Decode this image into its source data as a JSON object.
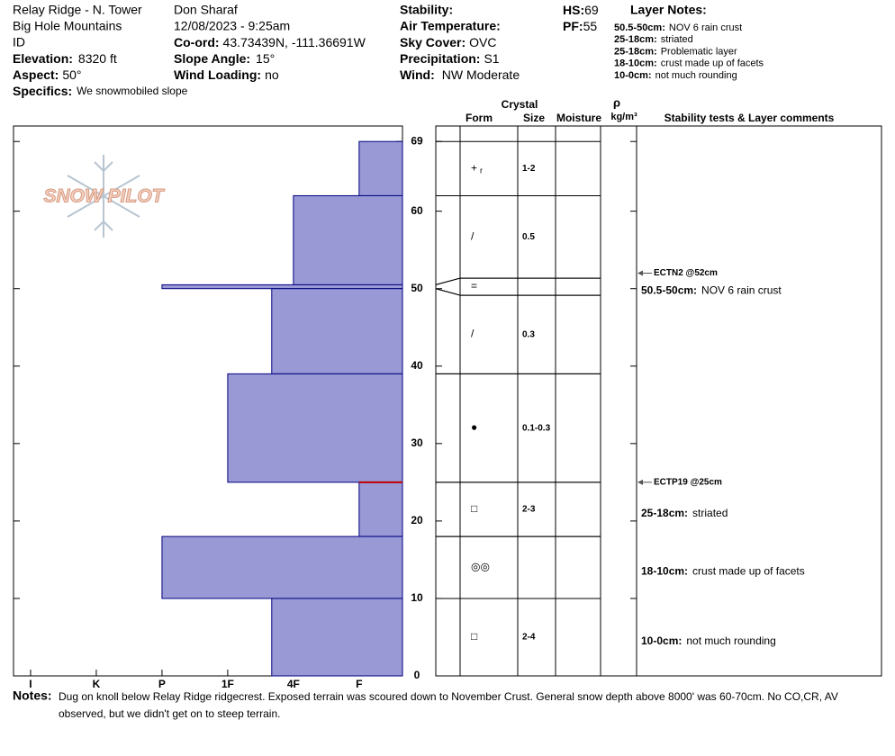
{
  "header": {
    "location": "Relay Ridge - N. Tower",
    "range": "Big Hole Mountains",
    "state": "ID",
    "elevation": {
      "label": "Elevation:",
      "value": "8320 ft"
    },
    "aspect": {
      "label": "Aspect:",
      "value": "50°"
    },
    "specifics": {
      "label": "Specifics:",
      "value": "We snowmobiled slope"
    },
    "observer": "Don Sharaf",
    "datetime": "12/08/2023 - 9:25am",
    "coord": {
      "label": "Co-ord:",
      "value": "43.73439N, -111.36691W"
    },
    "slope_angle": {
      "label": "Slope Angle:",
      "value": "15°"
    },
    "wind_loading": {
      "label": "Wind Loading:",
      "value": "no"
    },
    "stability": {
      "label": "Stability:"
    },
    "air_temperature": {
      "label": "Air Temperature:"
    },
    "sky_cover": {
      "label": "Sky Cover:",
      "value": "OVC"
    },
    "precipitation": {
      "label": "Precipitation:",
      "value": "S1"
    },
    "wind": {
      "label": "Wind:",
      "value": "NW Moderate"
    },
    "hs": {
      "label": "HS:",
      "value": "69"
    },
    "pf": {
      "label": "PF:",
      "value": "55"
    }
  },
  "layer_notes": {
    "title": "Layer Notes:",
    "items": [
      {
        "range": "50.5-50cm:",
        "text": "NOV 6 rain crust"
      },
      {
        "range": "25-18cm:",
        "text": "striated"
      },
      {
        "range": "25-18cm:",
        "text": "Problematic layer"
      },
      {
        "range": "18-10cm:",
        "text": "crust made up of facets"
      },
      {
        "range": "10-0cm:",
        "text": "not much rounding"
      }
    ]
  },
  "logo": "SNOW PILOT",
  "profile": {
    "ylim": [
      0,
      71
    ],
    "yticks": [
      0,
      10,
      20,
      30,
      40,
      50,
      60,
      69
    ],
    "xlim": [
      6.26,
      0.34
    ],
    "xticks": [
      {
        "value": 6,
        "label": "I"
      },
      {
        "value": 5,
        "label": "K"
      },
      {
        "value": 4,
        "label": "P"
      },
      {
        "value": 3,
        "label": "1F"
      },
      {
        "value": 2,
        "label": "4F"
      },
      {
        "value": 1,
        "label": "F"
      }
    ],
    "bar_color": "#9999d6",
    "headers": {
      "crystal": "Crystal",
      "form": "Form",
      "size": "Size",
      "moisture": "Moisture",
      "density": "ρ",
      "density_unit": "kg/m³",
      "comments": "Stability tests & Layer comments"
    },
    "layers": [
      {
        "top": 69,
        "bottom": 62,
        "hardness": 1,
        "form": "+",
        "form_sub": "r",
        "size": "1-2"
      },
      {
        "top": 62,
        "bottom": 50.5,
        "hardness": 2,
        "form": "/",
        "size": "0.5"
      },
      {
        "top": 50.5,
        "bottom": 50,
        "hardness": 4,
        "form": "=",
        "comment_range": "50.5-50cm:",
        "comment": "NOV 6 rain crust"
      },
      {
        "top": 50,
        "bottom": 39,
        "hardness": 2.33,
        "form": "/",
        "size": "0.3"
      },
      {
        "top": 39,
        "bottom": 25,
        "hardness": 3,
        "form": "●",
        "size": "0.1-0.3"
      },
      {
        "top": 25,
        "bottom": 18,
        "hardness": 1,
        "form": "□",
        "size": "2-3",
        "comment_range": "25-18cm:",
        "comment": "striated"
      },
      {
        "top": 18,
        "bottom": 10,
        "hardness": 4,
        "form": "◎◎",
        "comment_range": "18-10cm:",
        "comment": "crust made up of facets"
      },
      {
        "top": 10,
        "bottom": 0,
        "hardness": 2.33,
        "form": "□",
        "size": "2-4",
        "comment_range": "10-0cm:",
        "comment": "not much rounding"
      }
    ],
    "stability_tests": [
      {
        "label": "ECTN2 @52cm",
        "height": 52
      },
      {
        "label": "ECTP19 @25cm",
        "height": 25
      }
    ]
  },
  "notes": {
    "label": "Notes:",
    "text": "Dug on knoll below Relay Ridge ridgecrest.  Exposed terrain was scoured down to November Crust. General snow depth above 8000' was 60-70cm. No CO,CR, AV observed, but we didn't get on to steep terrain."
  }
}
